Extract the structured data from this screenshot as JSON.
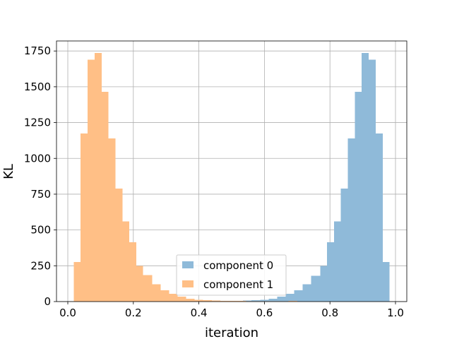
{
  "chart_data": {
    "type": "bar",
    "title": "",
    "xlabel": "iteration",
    "ylabel": "KL",
    "xlim": [
      -0.0345,
      1.0345
    ],
    "ylim": [
      0,
      1820
    ],
    "xticks": [
      0.0,
      0.2,
      0.4,
      0.6,
      0.8,
      1.0
    ],
    "xtick_labels": [
      "0.0",
      "0.2",
      "0.4",
      "0.6",
      "0.8",
      "1.0"
    ],
    "yticks": [
      0,
      250,
      500,
      750,
      1000,
      1250,
      1500,
      1750
    ],
    "ytick_labels": [
      "0",
      "250",
      "500",
      "750",
      "1000",
      "1250",
      "1500",
      "1750"
    ],
    "grid": true,
    "legend_position": "lower-center",
    "series": [
      {
        "name": "component 0",
        "color": "#8fbad9",
        "bin_edges": [
          0.3,
          0.326,
          0.352,
          0.378,
          0.404,
          0.43,
          0.456,
          0.482,
          0.508,
          0.534,
          0.56,
          0.587,
          0.613,
          0.639,
          0.665,
          0.691,
          0.717,
          0.743,
          0.77,
          0.791,
          0.812,
          0.833,
          0.855,
          0.876,
          0.897,
          0.918,
          0.94,
          0.961,
          0.982
        ],
        "counts": [
          5,
          3,
          2,
          2,
          3,
          3,
          4,
          5,
          6,
          7,
          9,
          12,
          20,
          35,
          55,
          80,
          120,
          180,
          250,
          415,
          560,
          790,
          1140,
          1465,
          1735,
          1690,
          1175,
          275
        ]
      },
      {
        "name": "component 1",
        "color": "#ffbf86",
        "bin_edges": [
          0.018,
          0.039,
          0.06,
          0.082,
          0.103,
          0.124,
          0.145,
          0.167,
          0.188,
          0.209,
          0.23,
          0.257,
          0.283,
          0.309,
          0.335,
          0.361,
          0.387,
          0.413,
          0.44,
          0.466,
          0.492,
          0.518,
          0.544,
          0.57,
          0.596,
          0.622,
          0.648,
          0.674,
          0.7
        ],
        "counts": [
          275,
          1175,
          1690,
          1735,
          1465,
          1140,
          790,
          560,
          415,
          250,
          185,
          120,
          80,
          55,
          35,
          20,
          12,
          9,
          7,
          6,
          5,
          4,
          3,
          3,
          2,
          2,
          3,
          5
        ]
      }
    ]
  }
}
